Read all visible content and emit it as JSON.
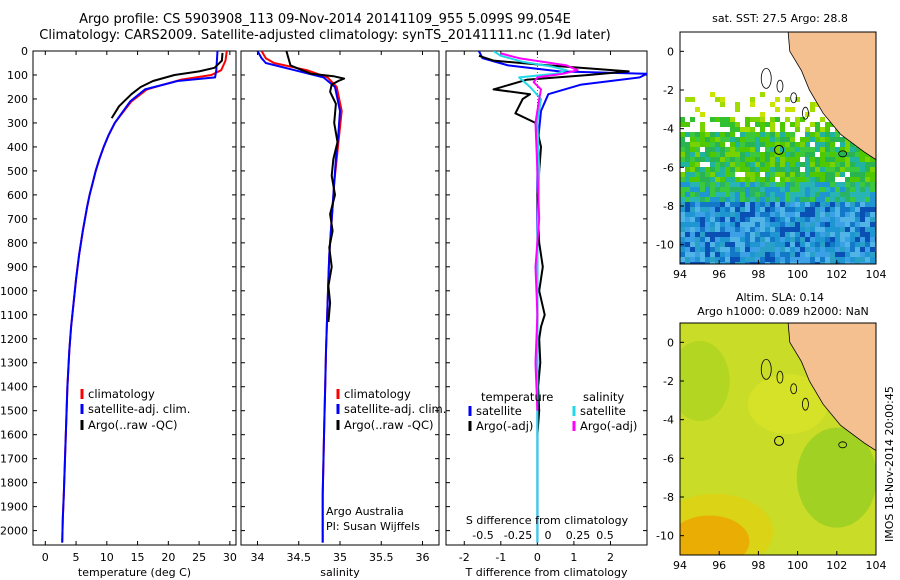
{
  "header": {
    "line1": "Argo profile: CS 5903908_113 09-Nov-2014 20141109_955 5.099S 99.054E",
    "line2": "Climatology: CARS2009. Satellite-adjusted climatology: synTS_20141111.nc (1.9d later)"
  },
  "depth_ticks": [
    "0",
    "100",
    "200",
    "300",
    "400",
    "500",
    "600",
    "700",
    "800",
    "900",
    "1000",
    "1100",
    "1200",
    "1300",
    "1400",
    "1500",
    "1600",
    "1700",
    "1800",
    "1900",
    "2000"
  ],
  "chart_data": [
    {
      "type": "line",
      "panel": "temperature",
      "xlabel": "temperature (deg C)",
      "xlim": [
        -2,
        31
      ],
      "ylim": [
        2060,
        0
      ],
      "xticks": [
        0,
        5,
        10,
        15,
        20,
        25,
        30
      ],
      "xtick_labels": [
        "0",
        "5",
        "10",
        "15",
        "20",
        "25",
        "30"
      ],
      "legend": [
        "climatology",
        "satellite-adj. clim.",
        "Argo(..raw -QC)"
      ],
      "series": [
        {
          "name": "climatology",
          "color": "#ff0000",
          "x": [
            29.5,
            29.3,
            28.6,
            27.0,
            22.0,
            16.5,
            14.0,
            12.5,
            11.3,
            10.3,
            9.5,
            8.8,
            8.2,
            7.7,
            7.2,
            6.8,
            6.1,
            5.5,
            5.0,
            4.6,
            4.2,
            3.9,
            3.6,
            3.4,
            3.2,
            3.0,
            2.85,
            2.75
          ],
          "y": [
            0,
            40,
            80,
            100,
            120,
            160,
            210,
            260,
            300,
            350,
            400,
            450,
            500,
            550,
            600,
            650,
            750,
            850,
            950,
            1050,
            1150,
            1250,
            1400,
            1550,
            1700,
            1850,
            1950,
            2050
          ]
        },
        {
          "name": "satellite-adj. clim.",
          "color": "#0000ff",
          "x": [
            28.0,
            27.9,
            27.8,
            27.6,
            21.5,
            16.2,
            13.8,
            12.4,
            11.3,
            10.3,
            9.5,
            8.8,
            8.2,
            7.7,
            7.2,
            6.8,
            6.1,
            5.5,
            5.0,
            4.6,
            4.2,
            3.9,
            3.6,
            3.4,
            3.2,
            3.0,
            2.85,
            2.75
          ],
          "y": [
            0,
            40,
            80,
            110,
            125,
            160,
            210,
            260,
            300,
            350,
            400,
            450,
            500,
            550,
            600,
            650,
            750,
            850,
            950,
            1050,
            1150,
            1250,
            1400,
            1550,
            1700,
            1850,
            1950,
            2050
          ]
        },
        {
          "name": "Argo(..raw -QC)",
          "color": "#000000",
          "x": [
            28.8,
            28.7,
            27.5,
            25.0,
            21.0,
            17.5,
            15.5,
            14.0,
            12.0,
            10.8
          ],
          "y": [
            8,
            40,
            70,
            85,
            100,
            125,
            150,
            180,
            230,
            280
          ]
        }
      ]
    },
    {
      "type": "line",
      "panel": "salinity",
      "xlabel": "salinity",
      "xlim": [
        33.8,
        36.2
      ],
      "ylim": [
        2060,
        0
      ],
      "xticks": [
        34,
        34.5,
        35,
        35.5,
        36
      ],
      "xtick_labels": [
        "34",
        "34.5",
        "35",
        "35.5",
        "36"
      ],
      "legend": [
        "climatology",
        "satellite-adj. clim.",
        "Argo(..raw -QC)"
      ],
      "series": [
        {
          "name": "climatology",
          "color": "#ff0000",
          "x": [
            34.05,
            34.1,
            34.2,
            34.6,
            34.85,
            34.96,
            35.02,
            34.99,
            34.96,
            34.93,
            34.91,
            34.89,
            34.87,
            34.86,
            34.85,
            34.84,
            34.83,
            34.82,
            34.81,
            34.8,
            34.79,
            34.79
          ],
          "y": [
            0,
            30,
            50,
            80,
            110,
            150,
            250,
            350,
            450,
            550,
            650,
            750,
            850,
            950,
            1050,
            1150,
            1250,
            1400,
            1550,
            1700,
            1850,
            2050
          ]
        },
        {
          "name": "satellite-adj. clim.",
          "color": "#0000ff",
          "x": [
            34.0,
            34.05,
            34.1,
            34.45,
            34.8,
            34.94,
            35.0,
            34.98,
            34.95,
            34.93,
            34.91,
            34.89,
            34.87,
            34.86,
            34.85,
            34.84,
            34.83,
            34.82,
            34.81,
            34.8,
            34.79,
            34.79
          ],
          "y": [
            0,
            30,
            50,
            80,
            110,
            150,
            250,
            350,
            450,
            550,
            650,
            750,
            850,
            950,
            1050,
            1150,
            1250,
            1400,
            1550,
            1700,
            1850,
            2050
          ]
        },
        {
          "name": "Argo(..raw -QC)",
          "color": "#000000",
          "x": [
            34.35,
            34.4,
            34.65,
            34.92,
            35.05,
            34.98,
            34.9,
            34.88,
            34.95,
            34.93,
            34.97,
            34.92,
            34.9,
            34.94,
            34.88,
            34.91,
            34.87,
            34.9,
            34.86,
            34.88,
            34.86
          ],
          "y": [
            0,
            60,
            95,
            105,
            115,
            125,
            140,
            170,
            220,
            300,
            380,
            450,
            520,
            600,
            680,
            750,
            820,
            900,
            980,
            1050,
            1130
          ]
        }
      ],
      "annotations": [
        "Argo Australia",
        "PI: Susan Wijffels"
      ]
    },
    {
      "type": "line",
      "panel": "difference",
      "xlabel": "T difference from climatology",
      "xlabel_top": "S difference from climatology",
      "xlim": [
        -2.5,
        3
      ],
      "ylim": [
        2060,
        0
      ],
      "xticks": [
        -2,
        -1,
        0,
        1,
        2
      ],
      "xtick_labels": [
        "-2",
        "-1",
        "0",
        "1",
        "2"
      ],
      "s_ticks": [
        "-0.5",
        "-0.25",
        "0",
        "0.25",
        "0.5"
      ],
      "legend": {
        "temperature_title": "temperature",
        "salinity_title": "salinity",
        "temperature": [
          "satellite",
          "Argo(-adj)"
        ],
        "salinity": [
          "satellite",
          "Argo(-adj)"
        ]
      },
      "series": [
        {
          "name": "satellite",
          "color": "#0000ff",
          "x": [
            -1.6,
            -1.5,
            -0.8,
            0.6,
            3.0,
            2.8,
            1.2,
            0.3,
            0.1,
            0.0,
            0.0,
            0.0,
            0.0,
            0.0
          ],
          "y": [
            0,
            30,
            60,
            85,
            95,
            110,
            140,
            180,
            250,
            400,
            700,
            1200,
            1600,
            2050
          ]
        },
        {
          "name": "Argo(-adj)",
          "color": "#000000",
          "x": [
            -1.6,
            -1.2,
            0.3,
            2.5,
            1.4,
            -0.3,
            -1.2,
            -0.2,
            -0.4,
            -0.6,
            -0.05,
            0.1,
            0.05,
            0.0,
            0.02,
            0.05,
            0.15,
            0.05,
            0.2,
            0.1,
            0.05,
            0.08,
            0.02,
            0.05,
            0.0
          ],
          "y": [
            20,
            40,
            60,
            85,
            100,
            120,
            160,
            180,
            200,
            260,
            300,
            400,
            500,
            600,
            700,
            800,
            900,
            1000,
            1100,
            1150,
            1200,
            1300,
            1400,
            1500,
            1600
          ]
        },
        {
          "name": "satellite",
          "color": "#22d8e8",
          "x": [
            -1.2,
            -1.0,
            -0.4,
            0.4,
            0.8,
            0.5,
            -0.5,
            -0.2,
            0.1,
            0.0,
            0.05,
            0.0,
            0.0,
            0.0,
            0.0
          ],
          "y": [
            0,
            20,
            45,
            65,
            80,
            95,
            110,
            150,
            200,
            300,
            500,
            800,
            1200,
            1600,
            2050
          ]
        },
        {
          "name": "Argo(-adj)",
          "color": "#ff00ff",
          "x": [
            -1.0,
            -0.5,
            0.8,
            1.1,
            0.7,
            0.0,
            -0.1,
            0.1,
            0.05,
            -0.05,
            0.0,
            0.05,
            -0.05,
            0.0,
            -0.05,
            0.0
          ],
          "y": [
            10,
            30,
            60,
            80,
            95,
            110,
            130,
            160,
            200,
            300,
            500,
            700,
            900,
            1100,
            1300,
            1500
          ]
        }
      ]
    }
  ],
  "maps": {
    "sst": {
      "title": "sat. SST: 27.5  Argo: 28.8",
      "xtick_labels": [
        "94",
        "96",
        "98",
        "100",
        "102",
        "104"
      ],
      "ytick_labels": [
        "0",
        "-2",
        "-4",
        "-6",
        "-8",
        "-10"
      ]
    },
    "sla": {
      "title1": "Altim. SLA: 0.14",
      "title2": "Argo h1000: 0.089 h2000: NaN",
      "xtick_labels": [
        "94",
        "96",
        "98",
        "100",
        "102",
        "104"
      ],
      "ytick_labels": [
        "0",
        "-2",
        "-4",
        "-6",
        "-8",
        "-10"
      ]
    },
    "float_position": {
      "lon": 99.054,
      "lat": -5.099
    },
    "imos_stamp": "IMOS 18-Nov-2014 20:00:45"
  }
}
